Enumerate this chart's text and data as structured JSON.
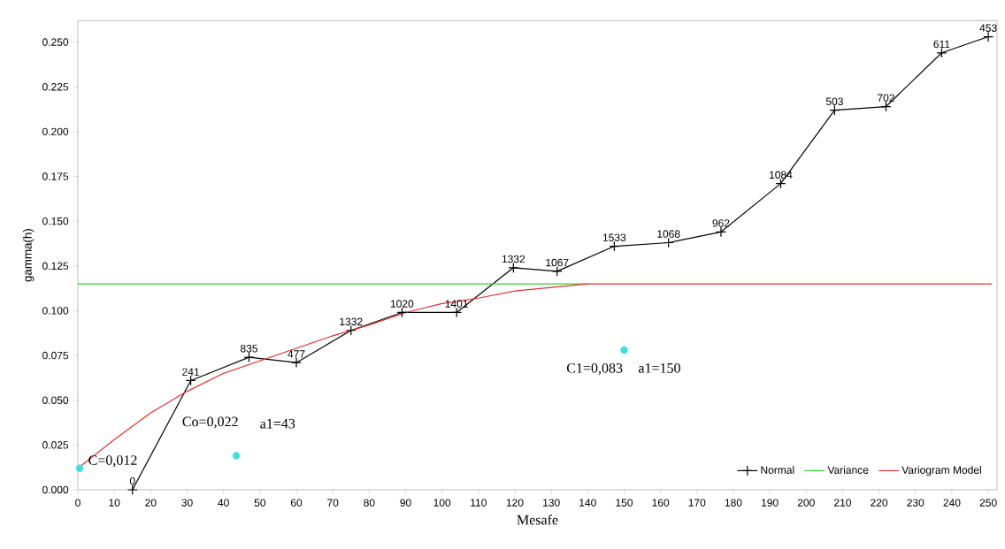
{
  "chart_data": {
    "type": "line",
    "xlabel": "Mesafe",
    "ylabel": "gamma(h)",
    "xlim": [
      0,
      252.4
    ],
    "ylim": [
      0,
      0.262
    ],
    "xticks": [
      0,
      10,
      20,
      30,
      40,
      50,
      60,
      70,
      80,
      90,
      100,
      110,
      120,
      130,
      140,
      150,
      160,
      170,
      180,
      190,
      200,
      210,
      220,
      230,
      240,
      250
    ],
    "yticks": [
      {
        "value": 0,
        "label": "0.000"
      },
      {
        "value": 0.025,
        "label": "0.025"
      },
      {
        "value": 0.05,
        "label": "0.050"
      },
      {
        "value": 0.075,
        "label": "0.075"
      },
      {
        "value": 0.1,
        "label": "0.100"
      },
      {
        "value": 0.125,
        "label": "0.125"
      },
      {
        "value": 0.15,
        "label": "0.150"
      },
      {
        "value": 0.175,
        "label": "0.175"
      },
      {
        "value": 0.2,
        "label": "0.200"
      },
      {
        "value": 0.225,
        "label": "0.225"
      },
      {
        "value": 0.25,
        "label": "0.250"
      }
    ],
    "grid": false,
    "legend": "bottom right",
    "series": [
      {
        "name": "Normal",
        "color": "#000000",
        "marker": "cross",
        "x": [
          15,
          31,
          47,
          60,
          75,
          89,
          104,
          119.6,
          131.6,
          147.3,
          162.2,
          176.6,
          193,
          207.8,
          221.9,
          237.2,
          250
        ],
        "values": [
          0,
          0.061,
          0.074,
          0.071,
          0.089,
          0.099,
          0.099,
          0.124,
          0.122,
          0.136,
          0.138,
          0.144,
          0.171,
          0.212,
          0.214,
          0.244,
          0.253
        ]
      },
      {
        "name": "Variance",
        "color": "#33cc33",
        "x": [
          0,
          140
        ],
        "values": [
          0.115,
          0.115
        ]
      },
      {
        "name": "Variogram Model",
        "color": "#dd3333",
        "x": [
          0,
          10,
          20,
          30,
          40,
          50,
          60,
          70,
          80,
          90,
          100,
          110,
          120,
          130,
          140,
          251
        ],
        "values": [
          0.012,
          0.028,
          0.043,
          0.055,
          0.065,
          0.072,
          0.079,
          0.086,
          0.092,
          0.099,
          0.104,
          0.107,
          0.111,
          0.113,
          0.115,
          0.115
        ]
      },
      {
        "type": "scatter",
        "color": "#44dddd",
        "marker": "circle",
        "x": [
          0.5,
          43.5,
          150
        ],
        "values": [
          0.012,
          0.019,
          0.078
        ]
      }
    ],
    "annotations": [
      {
        "text": "C=0,012",
        "x": 0.5,
        "y": 0.012
      },
      {
        "text": "Co=0,022",
        "x": 43.5,
        "y": 0.019
      },
      {
        "text": "a1=43",
        "x": 43.5,
        "y": 0.019
      },
      {
        "text": "C1=0,083",
        "x": 150,
        "y": 0.078
      },
      {
        "text": "a1=150",
        "x": 150,
        "y": 0.078
      },
      {
        "text": "0",
        "x": 15,
        "y": 0
      },
      {
        "text": "241",
        "x": 31,
        "y": 0.061
      },
      {
        "text": "835",
        "x": 47,
        "y": 0.074
      },
      {
        "text": "477",
        "x": 60,
        "y": 0.071
      },
      {
        "text": "1332",
        "x": 75,
        "y": 0.089
      },
      {
        "text": "1020",
        "x": 89,
        "y": 0.099
      },
      {
        "text": "1401",
        "x": 104,
        "y": 0.099
      },
      {
        "text": "1332",
        "x": 119.6,
        "y": 0.124
      },
      {
        "text": "1067",
        "x": 131.6,
        "y": 0.122
      },
      {
        "text": "1533",
        "x": 147.3,
        "y": 0.136
      },
      {
        "text": "1068",
        "x": 162.2,
        "y": 0.138
      },
      {
        "text": "962",
        "x": 176.6,
        "y": 0.144
      },
      {
        "text": "1084",
        "x": 193,
        "y": 0.171
      },
      {
        "text": "503",
        "x": 207.8,
        "y": 0.212
      },
      {
        "text": "702",
        "x": 221.9,
        "y": 0.214
      },
      {
        "text": "611",
        "x": 237.2,
        "y": 0.244
      },
      {
        "text": "453",
        "x": 250,
        "y": 0.253
      }
    ]
  }
}
